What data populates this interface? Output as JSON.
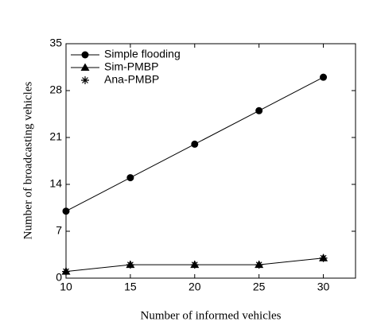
{
  "chart_data": {
    "type": "line",
    "x_label": "Number of informed vehicles",
    "y_label": "Number of broadcasting vehicles",
    "x": [
      10,
      15,
      20,
      25,
      30
    ],
    "series": [
      {
        "name": "Simple flooding",
        "color": "#000000",
        "marker": "circle",
        "line": true,
        "values": [
          10,
          15,
          20,
          25,
          30
        ]
      },
      {
        "name": "Sim-PMBP",
        "color": "#000000",
        "marker": "triangle",
        "line": true,
        "values": [
          1,
          2,
          2,
          2,
          3
        ]
      },
      {
        "name": "Ana-PMBP",
        "color": "#000000",
        "marker": "star",
        "line": false,
        "values": [
          1,
          2,
          2,
          2,
          3
        ]
      }
    ],
    "xlim": [
      10,
      32.5
    ],
    "xticks": [
      10,
      15,
      20,
      25,
      30
    ],
    "ylim": [
      0,
      35
    ],
    "yticks": [
      0,
      7,
      14,
      21,
      28,
      35
    ],
    "legend": "upper left"
  }
}
